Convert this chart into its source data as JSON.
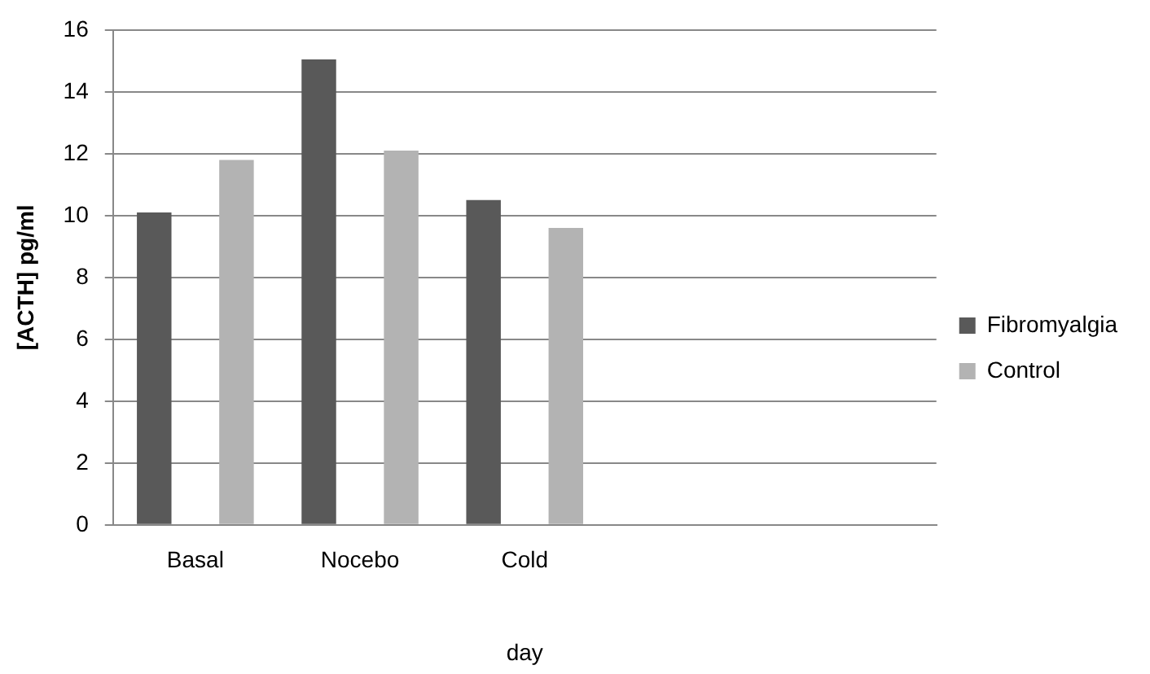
{
  "chart_data": {
    "type": "bar",
    "xlabel": "day",
    "ylabel": "[ACTH] pg/ml",
    "categories": [
      "Basal",
      "Nocebo",
      "Cold",
      null,
      null
    ],
    "series": [
      {
        "name": "Fibromyalgia",
        "color": "#595959",
        "values": [
          10.1,
          15.05,
          10.5,
          null,
          null
        ]
      },
      {
        "name": "Control",
        "color": "#b3b3b3",
        "values": [
          11.8,
          12.1,
          9.6,
          null,
          null
        ]
      }
    ],
    "ylim": [
      0,
      16
    ],
    "yticks": [
      0,
      2,
      4,
      6,
      8,
      10,
      12,
      14,
      16
    ],
    "grid": "y",
    "legend": "right"
  }
}
